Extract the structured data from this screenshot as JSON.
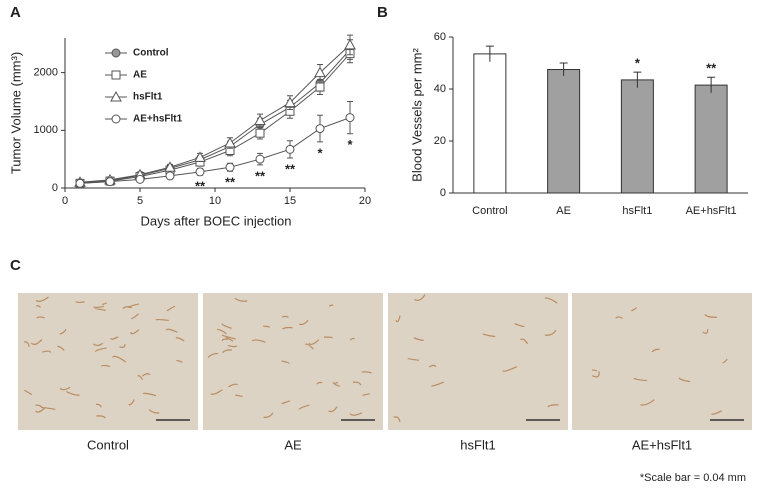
{
  "chart_data": [
    {
      "type": "line",
      "panel_label": "A",
      "xlabel": "Days after BOEC injection",
      "ylabel": "Tumor Volume (mm³)",
      "x": [
        1,
        3,
        5,
        7,
        9,
        11,
        13,
        15,
        17,
        19
      ],
      "xlim": [
        0,
        20
      ],
      "xticks": [
        0,
        5,
        10,
        15,
        20
      ],
      "ylim": [
        0,
        2600
      ],
      "yticks": [
        0,
        1000,
        2000
      ],
      "series": [
        {
          "name": "Control",
          "color": "#555555",
          "marker": "circle-filled",
          "values": [
            90,
            130,
            220,
            340,
            490,
            720,
            1100,
            1400,
            1820,
            2400
          ],
          "errors": [
            30,
            30,
            40,
            50,
            70,
            90,
            110,
            120,
            140,
            170
          ]
        },
        {
          "name": "AE",
          "color": "#555555",
          "marker": "square",
          "values": [
            80,
            120,
            200,
            310,
            450,
            650,
            950,
            1330,
            1750,
            2330
          ],
          "errors": [
            30,
            30,
            40,
            50,
            70,
            90,
            100,
            120,
            130,
            160
          ]
        },
        {
          "name": "hsFlt1",
          "color": "#555555",
          "marker": "triangle",
          "values": [
            100,
            140,
            230,
            360,
            530,
            780,
            1170,
            1480,
            2000,
            2480
          ],
          "errors": [
            30,
            30,
            40,
            50,
            70,
            90,
            110,
            120,
            140,
            170
          ]
        },
        {
          "name": "AE+hsFlt1",
          "color": "#555555",
          "marker": "circle",
          "values": [
            80,
            110,
            150,
            210,
            280,
            360,
            500,
            670,
            1030,
            1220
          ],
          "errors": [
            30,
            30,
            40,
            50,
            60,
            70,
            100,
            150,
            230,
            280
          ]
        }
      ],
      "annotations": [
        {
          "x": 9,
          "text": "**"
        },
        {
          "x": 11,
          "text": "**"
        },
        {
          "x": 13,
          "text": "**"
        },
        {
          "x": 15,
          "text": "**"
        },
        {
          "x": 17,
          "text": "*"
        },
        {
          "x": 19,
          "text": "*"
        }
      ]
    },
    {
      "type": "bar",
      "panel_label": "B",
      "ylabel": "Blood Vessels per mm²",
      "categories": [
        "Control",
        "AE",
        "hsFlt1",
        "AE+hsFlt1"
      ],
      "values": [
        53.5,
        47.5,
        43.5,
        41.5
      ],
      "errors": [
        3,
        2.5,
        3,
        3
      ],
      "colors": [
        "#ffffff",
        "#a0a0a0",
        "#a0a0a0",
        "#a0a0a0"
      ],
      "ylim": [
        0,
        60
      ],
      "yticks": [
        0,
        20,
        40,
        60
      ],
      "annotations": [
        {
          "category": "hsFlt1",
          "text": "*"
        },
        {
          "category": "AE+hsFlt1",
          "text": "**"
        }
      ]
    }
  ],
  "panel_c": {
    "label": "C",
    "images": [
      {
        "caption": "Control"
      },
      {
        "caption": "AE"
      },
      {
        "caption": "hsFlt1"
      },
      {
        "caption": "AE+hsFlt1"
      }
    ],
    "note": "*Scale bar = 0.04 mm"
  }
}
